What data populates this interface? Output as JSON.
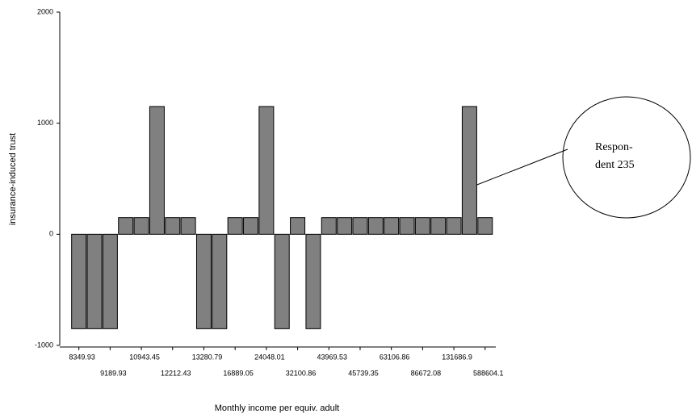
{
  "chart_data": {
    "type": "bar",
    "y_label": "insurance-induced trust",
    "x_label": "Monthly income per equiv. adult",
    "annotation": [
      "Respon-",
      "dent 235"
    ],
    "categories": [
      "8349.93",
      null,
      "9189.93",
      null,
      "10943.45",
      null,
      "12212.43",
      null,
      "13280.79",
      null,
      "16889.05",
      null,
      "24048.01",
      null,
      "32100.86",
      null,
      "43969.53",
      null,
      "45739.35",
      null,
      "63106.86",
      null,
      "86672.08",
      null,
      "131686.9",
      null,
      "588604.1"
    ],
    "values": [
      -850,
      -850,
      -850,
      150,
      150,
      1150,
      150,
      150,
      -850,
      -850,
      150,
      150,
      1150,
      -850,
      150,
      -850,
      150,
      150,
      150,
      150,
      150,
      150,
      150,
      150,
      150,
      1150,
      150
    ],
    "color": "#808080",
    "ylim": [
      -1000,
      2000
    ],
    "yticks": [
      -1000,
      0,
      1000,
      2000
    ]
  }
}
